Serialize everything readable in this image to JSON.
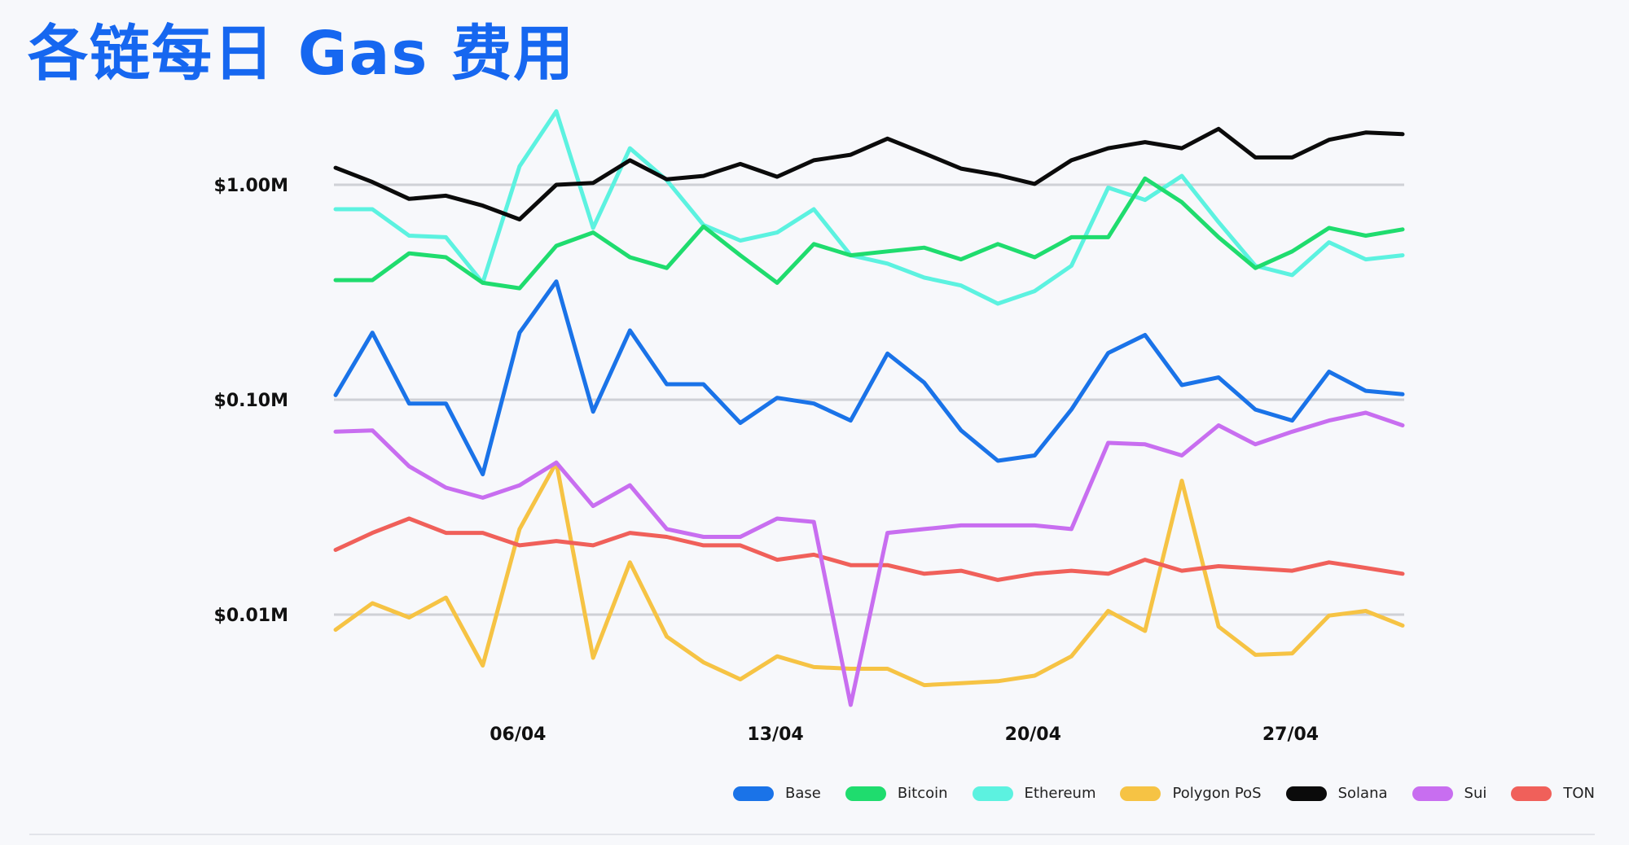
{
  "title": "各链每日 Gas 费用",
  "chart_data": {
    "type": "line",
    "title": "各链每日 Gas 费用",
    "y_scale": "log",
    "ylim_millions": [
      0.0033,
      3.2
    ],
    "y_ticks": [
      {
        "value": 1.0,
        "label": "$1.00M"
      },
      {
        "value": 0.1,
        "label": "$0.10M"
      },
      {
        "value": 0.01,
        "label": "$0.01M"
      }
    ],
    "grid": "horizontal at ticks",
    "x_ticks": [
      {
        "index": 5,
        "label": "06/04"
      },
      {
        "index": 12,
        "label": "13/04"
      },
      {
        "index": 19,
        "label": "20/04"
      },
      {
        "index": 26,
        "label": "27/04"
      }
    ],
    "x_count": 30,
    "legend_position": "bottom-right",
    "series": [
      {
        "name": "Base",
        "color": "#1a73e8",
        "values": [
          0.105,
          0.205,
          0.096,
          0.096,
          0.045,
          0.205,
          0.355,
          0.088,
          0.21,
          0.118,
          0.118,
          0.078,
          0.102,
          0.096,
          0.08,
          0.164,
          0.12,
          0.072,
          0.052,
          0.055,
          0.09,
          0.165,
          0.2,
          0.117,
          0.127,
          0.09,
          0.08,
          0.135,
          0.11,
          0.106
        ]
      },
      {
        "name": "Bitcoin",
        "color": "#1fdc6e",
        "values": [
          0.36,
          0.36,
          0.48,
          0.46,
          0.35,
          0.33,
          0.52,
          0.6,
          0.46,
          0.41,
          0.64,
          0.47,
          0.35,
          0.53,
          0.47,
          0.49,
          0.51,
          0.45,
          0.53,
          0.46,
          0.57,
          0.57,
          1.07,
          0.83,
          0.57,
          0.41,
          0.49,
          0.63,
          0.58,
          0.62
        ]
      },
      {
        "name": "Ethereum",
        "color": "#5cf2e0",
        "values": [
          0.77,
          0.77,
          0.58,
          0.57,
          0.35,
          1.22,
          2.2,
          0.63,
          1.48,
          1.05,
          0.65,
          0.55,
          0.6,
          0.77,
          0.47,
          0.43,
          0.37,
          0.34,
          0.28,
          0.32,
          0.42,
          0.97,
          0.85,
          1.1,
          0.67,
          0.42,
          0.38,
          0.54,
          0.45,
          0.47
        ]
      },
      {
        "name": "Polygon PoS",
        "color": "#f6c344",
        "values": [
          0.0085,
          0.0113,
          0.0097,
          0.012,
          0.0058,
          0.025,
          0.051,
          0.0063,
          0.0175,
          0.0079,
          0.006,
          0.005,
          0.0064,
          0.0057,
          0.0056,
          0.0056,
          0.0047,
          0.0048,
          0.0049,
          0.0052,
          0.0064,
          0.0104,
          0.0084,
          0.042,
          0.0088,
          0.0065,
          0.0066,
          0.0099,
          0.0104,
          0.0089
        ]
      },
      {
        "name": "Solana",
        "color": "#0b0b0b",
        "values": [
          1.2,
          1.03,
          0.86,
          0.89,
          0.8,
          0.69,
          1.0,
          1.02,
          1.3,
          1.06,
          1.1,
          1.25,
          1.09,
          1.3,
          1.38,
          1.64,
          1.4,
          1.19,
          1.11,
          1.01,
          1.3,
          1.48,
          1.58,
          1.48,
          1.82,
          1.34,
          1.34,
          1.62,
          1.75,
          1.72
        ]
      },
      {
        "name": "Sui",
        "color": "#c86ef0",
        "values": [
          0.071,
          0.072,
          0.049,
          0.039,
          0.035,
          0.04,
          0.051,
          0.032,
          0.04,
          0.025,
          0.023,
          0.023,
          0.028,
          0.027,
          0.0038,
          0.024,
          0.025,
          0.026,
          0.026,
          0.026,
          0.025,
          0.063,
          0.062,
          0.055,
          0.076,
          0.062,
          0.071,
          0.08,
          0.087,
          0.076
        ]
      },
      {
        "name": "TON",
        "color": "#f0605a",
        "values": [
          0.02,
          0.024,
          0.028,
          0.024,
          0.024,
          0.021,
          0.022,
          0.021,
          0.024,
          0.023,
          0.021,
          0.021,
          0.018,
          0.019,
          0.017,
          0.017,
          0.0155,
          0.016,
          0.0145,
          0.0155,
          0.016,
          0.0155,
          0.018,
          0.016,
          0.0168,
          0.0164,
          0.016,
          0.0175,
          0.0165,
          0.0155
        ]
      }
    ]
  }
}
